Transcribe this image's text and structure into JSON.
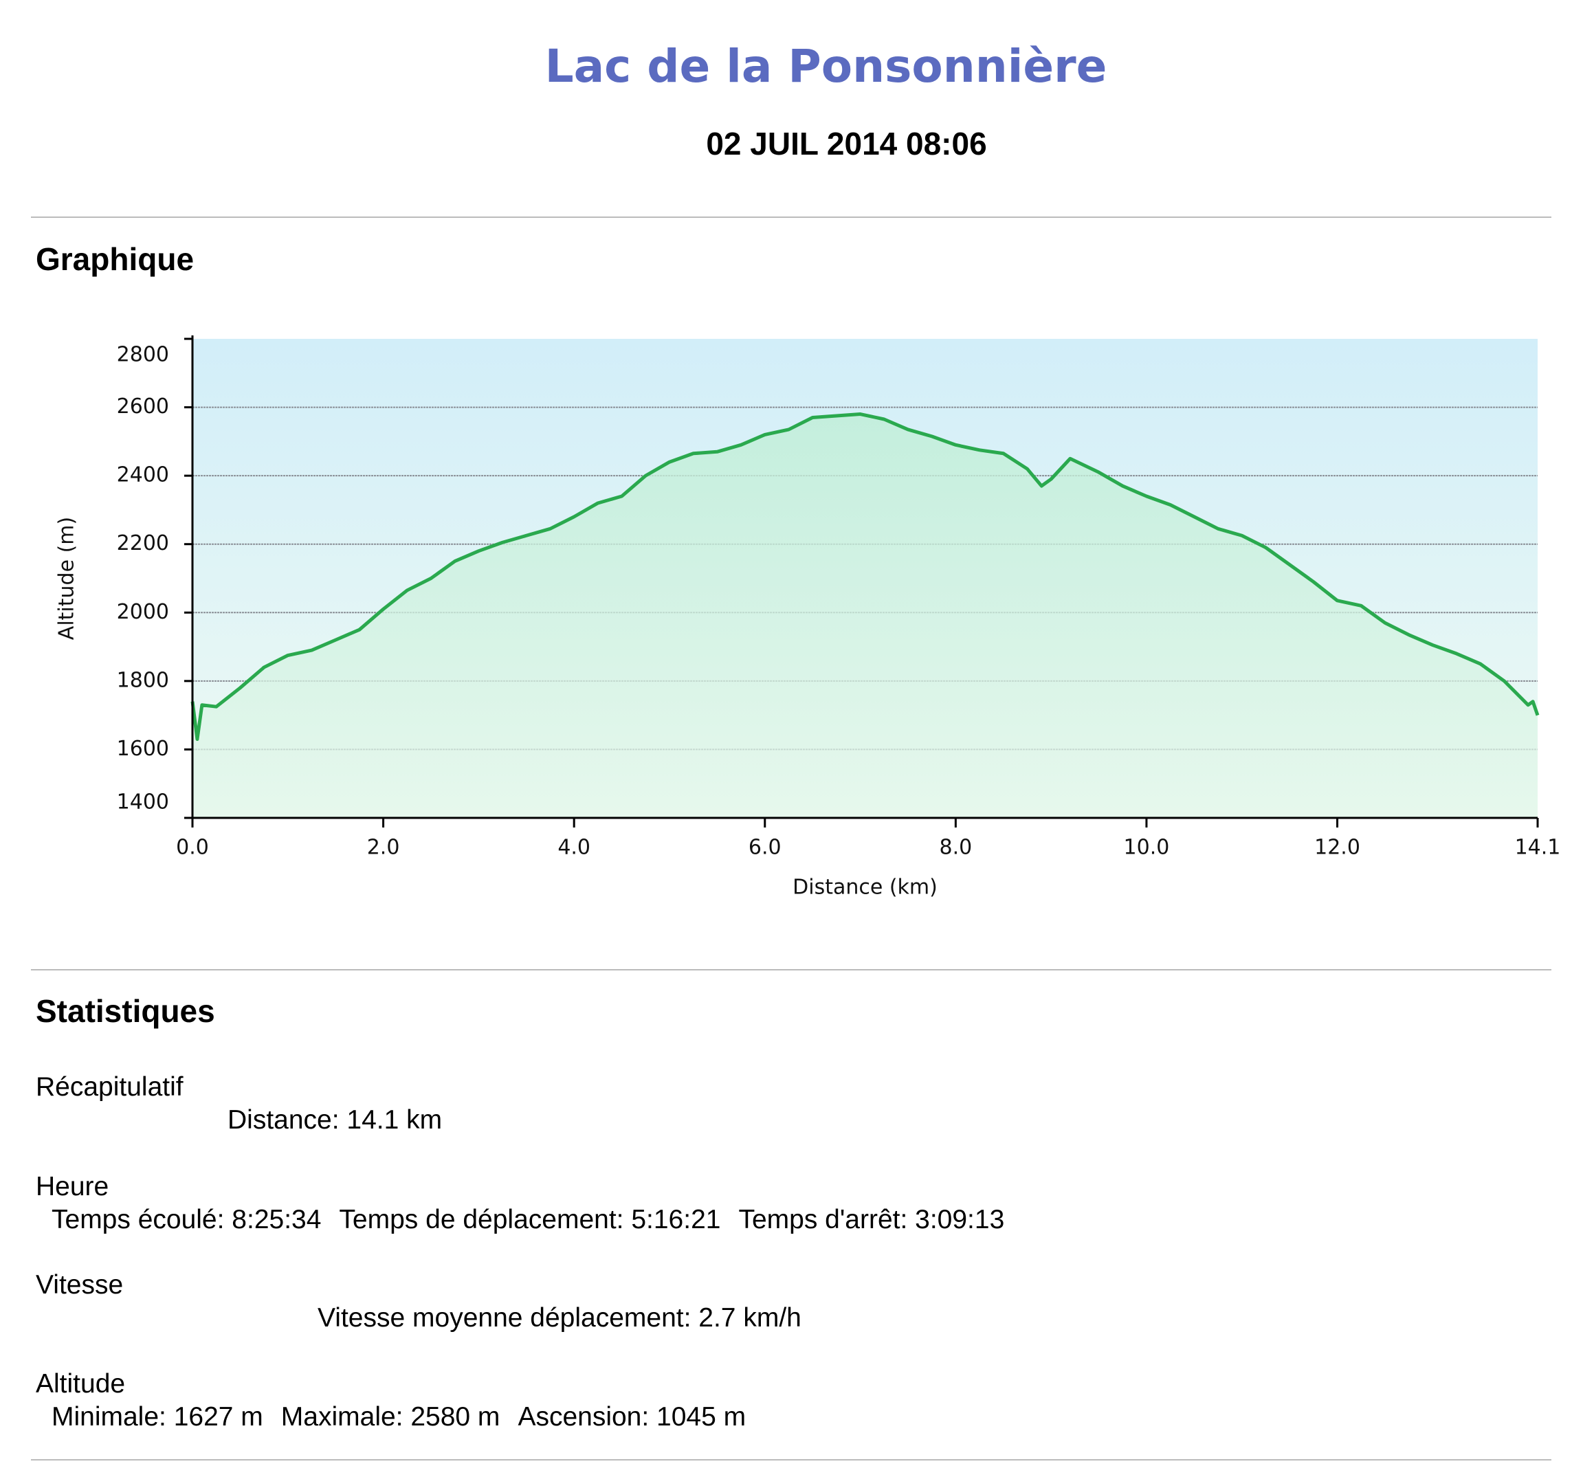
{
  "header": {
    "title": "Lac de la Ponsonnière",
    "date": "02 JUIL 2014 08:06"
  },
  "graph_section": {
    "heading": "Graphique"
  },
  "chart_data": {
    "type": "area",
    "xlabel": "Distance (km)",
    "ylabel": "Altitude (m)",
    "color": "#2aa94e",
    "grid": true,
    "x": [
      0,
      0.05,
      0.1,
      0.25,
      0.5,
      0.75,
      1,
      1.25,
      1.5,
      1.75,
      2,
      2.25,
      2.5,
      2.75,
      3,
      3.25,
      3.5,
      3.75,
      4,
      4.25,
      4.5,
      4.75,
      5,
      5.25,
      5.5,
      5.75,
      6,
      6.25,
      6.5,
      6.75,
      7,
      7.25,
      7.5,
      7.75,
      8,
      8.25,
      8.5,
      8.75,
      8.9,
      9,
      9.2,
      9.5,
      9.75,
      10,
      10.25,
      10.5,
      10.75,
      11,
      11.25,
      11.5,
      11.75,
      12,
      12.25,
      12.5,
      12.75,
      13,
      13.25,
      13.5,
      13.75,
      14,
      14.05,
      14.1
    ],
    "values": [
      1740,
      1630,
      1730,
      1725,
      1780,
      1840,
      1875,
      1890,
      1920,
      1950,
      2010,
      2065,
      2100,
      2150,
      2180,
      2205,
      2225,
      2245,
      2280,
      2320,
      2340,
      2400,
      2440,
      2465,
      2470,
      2490,
      2520,
      2535,
      2570,
      2575,
      2580,
      2565,
      2535,
      2515,
      2490,
      2475,
      2465,
      2420,
      2370,
      2390,
      2450,
      2410,
      2370,
      2340,
      2315,
      2280,
      2245,
      2225,
      2190,
      2140,
      2090,
      2035,
      2020,
      1970,
      1935,
      1905,
      1880,
      1850,
      1800,
      1730,
      1740,
      1700
    ],
    "xlim": [
      0,
      14.1
    ],
    "ylim": [
      1400,
      2800
    ],
    "xticks": [
      {
        "value": 0,
        "label": "0.0"
      },
      {
        "value": 2,
        "label": "2.0"
      },
      {
        "value": 4,
        "label": "4.0"
      },
      {
        "value": 6,
        "label": "6.0"
      },
      {
        "value": 8,
        "label": "8.0"
      },
      {
        "value": 10,
        "label": "10.0"
      },
      {
        "value": 12,
        "label": "12.0"
      },
      {
        "value": 14.1,
        "label": "14.1"
      }
    ],
    "yticks": [
      1400,
      1600,
      1800,
      2000,
      2200,
      2400,
      2600,
      2800
    ]
  },
  "stats": {
    "heading": "Statistiques",
    "groups": [
      {
        "title": "Récapitulatif",
        "items": [
          "Distance: 14.1 km"
        ]
      },
      {
        "title": "Heure",
        "items": [
          "Temps écoulé: 8:25:34",
          "Temps de déplacement: 5:16:21",
          "Temps d'arrêt: 3:09:13"
        ]
      },
      {
        "title": "Vitesse",
        "items": [
          "Vitesse moyenne déplacement: 2.7 km/h"
        ]
      },
      {
        "title": "Altitude",
        "items": [
          "Minimale: 1627 m",
          "Maximale: 2580 m",
          "Ascension: 1045 m"
        ]
      }
    ]
  }
}
